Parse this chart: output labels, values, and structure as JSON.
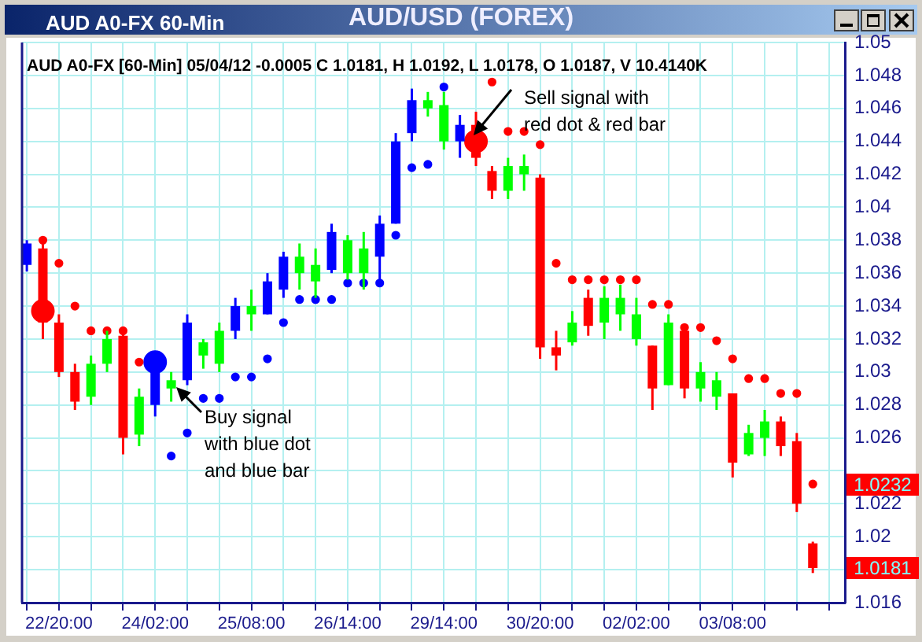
{
  "chart_data": {
    "type": "candlestick",
    "title": "AUD/USD (FOREX)",
    "subtitle": "AUD A0-FX [60-Min] 05/04/12  -0.0005 C 1.0181, H 1.0192, L 1.0178, O 1.0187, V 10.4140K",
    "annotations": [
      "AUD A0-FX 60-Min",
      "Buy signal\nwith blue dot\nand blue bar",
      "Sell signal with\nred dot & red bar",
      "1.0232",
      "1.0181"
    ],
    "categories": [
      null,
      null,
      "22/20:00",
      null,
      null,
      null,
      null,
      null,
      "24/02:00",
      null,
      null,
      null,
      null,
      null,
      "25/08:00",
      null,
      null,
      null,
      null,
      null,
      "26/14:00",
      null,
      null,
      null,
      null,
      null,
      "29/14:00",
      null,
      null,
      null,
      null,
      null,
      "30/20:00",
      null,
      null,
      null,
      null,
      null,
      "02/02:00",
      null,
      null,
      null,
      null,
      null,
      "03/08:00",
      null,
      null,
      null,
      null,
      null
    ],
    "ohlc": [
      [
        1.0365,
        1.038,
        1.0361,
        1.0378
      ],
      [
        1.0375,
        1.038,
        1.032,
        1.033
      ],
      [
        1.033,
        1.0335,
        1.0297,
        1.03
      ],
      [
        1.03,
        1.0305,
        1.0277,
        1.0282
      ],
      [
        1.0285,
        1.031,
        1.028,
        1.0305
      ],
      [
        1.0305,
        1.0325,
        1.03,
        1.032
      ],
      [
        1.0322,
        1.0325,
        1.025,
        1.026
      ],
      [
        1.0262,
        1.029,
        1.0255,
        1.0285
      ],
      [
        1.028,
        1.0305,
        1.0273,
        1.03
      ],
      [
        1.029,
        1.03,
        1.0282,
        1.0295
      ],
      [
        1.0295,
        1.0335,
        1.0292,
        1.033
      ],
      [
        1.031,
        1.032,
        1.0302,
        1.0318
      ],
      [
        1.0305,
        1.033,
        1.03,
        1.0325
      ],
      [
        1.0325,
        1.0345,
        1.032,
        1.034
      ],
      [
        1.0335,
        1.035,
        1.0325,
        1.034
      ],
      [
        1.0335,
        1.036,
        1.0335,
        1.0355
      ],
      [
        1.035,
        1.0373,
        1.0345,
        1.037
      ],
      [
        1.036,
        1.0378,
        1.035,
        1.037
      ],
      [
        1.0355,
        1.0375,
        1.0345,
        1.0365
      ],
      [
        1.0362,
        1.039,
        1.036,
        1.0385
      ],
      [
        1.036,
        1.0383,
        1.0356,
        1.038
      ],
      [
        1.036,
        1.0385,
        1.035,
        1.0375
      ],
      [
        1.037,
        1.0395,
        1.0355,
        1.039
      ],
      [
        1.039,
        1.0445,
        1.039,
        1.044
      ],
      [
        1.0445,
        1.0472,
        1.044,
        1.0465
      ],
      [
        1.046,
        1.047,
        1.0455,
        1.0465
      ],
      [
        1.044,
        1.047,
        1.0435,
        1.0462
      ],
      [
        1.044,
        1.0456,
        1.043,
        1.045
      ],
      [
        1.045,
        1.0458,
        1.0425,
        1.043
      ],
      [
        1.0422,
        1.0425,
        1.0405,
        1.041
      ],
      [
        1.041,
        1.043,
        1.0405,
        1.0425
      ],
      [
        1.042,
        1.0432,
        1.041,
        1.0425
      ],
      [
        1.0418,
        1.042,
        1.0308,
        1.0315
      ],
      [
        1.0315,
        1.0325,
        1.0301,
        1.031
      ],
      [
        1.0318,
        1.0337,
        1.0316,
        1.033
      ],
      [
        1.0345,
        1.035,
        1.0322,
        1.0328
      ],
      [
        1.033,
        1.0352,
        1.032,
        1.0345
      ],
      [
        1.0335,
        1.0353,
        1.0325,
        1.0345
      ],
      [
        1.032,
        1.0345,
        1.0316,
        1.0335
      ],
      [
        1.0316,
        1.0316,
        1.0277,
        1.029
      ],
      [
        1.0292,
        1.0335,
        1.0292,
        1.033
      ],
      [
        1.0325,
        1.0325,
        1.0284,
        1.029
      ],
      [
        1.029,
        1.0306,
        1.0282,
        1.03
      ],
      [
        1.0285,
        1.03,
        1.0277,
        1.0295
      ],
      [
        1.0287,
        1.0287,
        1.0236,
        1.0245
      ],
      [
        1.025,
        1.0268,
        1.0249,
        1.0263
      ],
      [
        1.026,
        1.0277,
        1.0249,
        1.027
      ],
      [
        1.027,
        1.0273,
        1.0249,
        1.0255
      ],
      [
        1.0258,
        1.0263,
        1.0215,
        1.022
      ],
      [
        1.0196,
        1.0197,
        1.0178,
        1.0181
      ]
    ],
    "colors": [
      "#0000ff",
      "#ff0000",
      "#ff0000",
      "#ff0000",
      "#00ff00",
      "#00ff00",
      "#ff0000",
      "#00ff00",
      "#0000ff",
      "#00ff00",
      "#0000ff",
      "#00ff00",
      "#00ff00",
      "#0000ff",
      "#00ff00",
      "#0000ff",
      "#0000ff",
      "#00ff00",
      "#00ff00",
      "#0000ff",
      "#00ff00",
      "#00ff00",
      "#0000ff",
      "#0000ff",
      "#0000ff",
      "#00ff00",
      "#00ff00",
      "#0000ff",
      "#ff0000",
      "#ff0000",
      "#00ff00",
      "#00ff00",
      "#ff0000",
      "#ff0000",
      "#00ff00",
      "#ff0000",
      "#00ff00",
      "#00ff00",
      "#00ff00",
      "#ff0000",
      "#00ff00",
      "#ff0000",
      "#00ff00",
      "#00ff00",
      "#ff0000",
      "#00ff00",
      "#00ff00",
      "#ff0000",
      "#ff0000",
      "#ff0000"
    ],
    "series": [
      {
        "type": "scatter",
        "color": "#ff0000",
        "values": [
          null,
          1.038,
          1.0366,
          1.034,
          1.0325,
          1.0325,
          1.0325,
          1.0306,
          null,
          null,
          null,
          null,
          null,
          null,
          null,
          null,
          null,
          null,
          null,
          null,
          null,
          null,
          null,
          null,
          null,
          null,
          null,
          null,
          null,
          1.0476,
          1.0446,
          1.0446,
          1.0438,
          1.0366,
          1.0356,
          1.0356,
          1.0356,
          1.0356,
          1.0356,
          1.0341,
          1.0341,
          1.0327,
          1.0327,
          1.0319,
          1.0308,
          1.0296,
          1.0296,
          1.0287,
          1.0287,
          1.0232
        ]
      },
      {
        "type": "scatter",
        "color": "#0000ff",
        "values": [
          null,
          null,
          null,
          null,
          null,
          null,
          null,
          null,
          null,
          1.0249,
          1.0263,
          1.0284,
          1.0284,
          1.0297,
          1.0297,
          1.0308,
          1.033,
          1.0344,
          1.0344,
          1.0344,
          1.0354,
          1.0354,
          1.0354,
          1.0383,
          1.0424,
          1.0426,
          1.0473,
          null,
          null,
          null,
          null,
          null,
          null,
          null,
          null,
          null,
          null,
          null,
          null,
          null,
          null,
          null,
          null,
          null,
          null,
          null,
          null,
          null,
          null,
          null
        ]
      },
      {
        "type": "bubble",
        "color": "#0000ff",
        "values": [
          null,
          null,
          null,
          null,
          null,
          null,
          null,
          null,
          1.0306,
          null,
          null,
          null,
          null,
          null,
          null,
          null,
          null,
          null,
          null,
          null,
          null,
          null,
          null,
          null,
          null,
          null,
          null,
          null,
          null,
          null,
          null,
          null,
          null,
          null,
          null,
          null,
          null,
          null,
          null,
          null,
          null,
          null,
          null,
          null,
          null,
          null,
          null,
          null,
          null,
          null
        ],
        "sizes": [
          null,
          null,
          null,
          null,
          null,
          null,
          null,
          null,
          1,
          null,
          null,
          null,
          null,
          null,
          null,
          null,
          null,
          null,
          null,
          null,
          null,
          null,
          null,
          null,
          null,
          null,
          null,
          null,
          null,
          null,
          null,
          null,
          null,
          null,
          null,
          null,
          null,
          null,
          null,
          null,
          null,
          null,
          null,
          null,
          null,
          null,
          null,
          null,
          null,
          null
        ]
      },
      {
        "type": "bubble",
        "color": "#ff0000",
        "values": [
          null,
          1.0337,
          null,
          null,
          null,
          null,
          null,
          null,
          null,
          null,
          null,
          null,
          null,
          null,
          null,
          null,
          null,
          null,
          null,
          null,
          null,
          null,
          null,
          null,
          null,
          null,
          null,
          null,
          1.044,
          null,
          null,
          null,
          null,
          null,
          null,
          null,
          null,
          null,
          null,
          null,
          null,
          null,
          null,
          null,
          null,
          null,
          null,
          null,
          null,
          null
        ],
        "sizes": [
          null,
          1,
          null,
          null,
          null,
          null,
          null,
          null,
          null,
          null,
          null,
          null,
          null,
          null,
          null,
          null,
          null,
          null,
          null,
          null,
          null,
          null,
          null,
          null,
          null,
          null,
          null,
          null,
          1,
          null,
          null,
          null,
          null,
          null,
          null,
          null,
          null,
          null,
          null,
          null,
          null,
          null,
          null,
          null,
          null,
          null,
          null,
          null,
          null,
          null
        ]
      }
    ],
    "ylim": [
      1.016,
      1.05
    ],
    "yticks": [
      1.016,
      {
        "value": 1.018,
        "label": null
      },
      1.02,
      1.022,
      {
        "value": 1.024,
        "label": null
      },
      1.026,
      1.028,
      1.03,
      1.032,
      1.034,
      1.036,
      1.038,
      1.04,
      1.042,
      1.044,
      1.046,
      1.048,
      1.05
    ],
    "grid": true,
    "marker": "circle"
  }
}
